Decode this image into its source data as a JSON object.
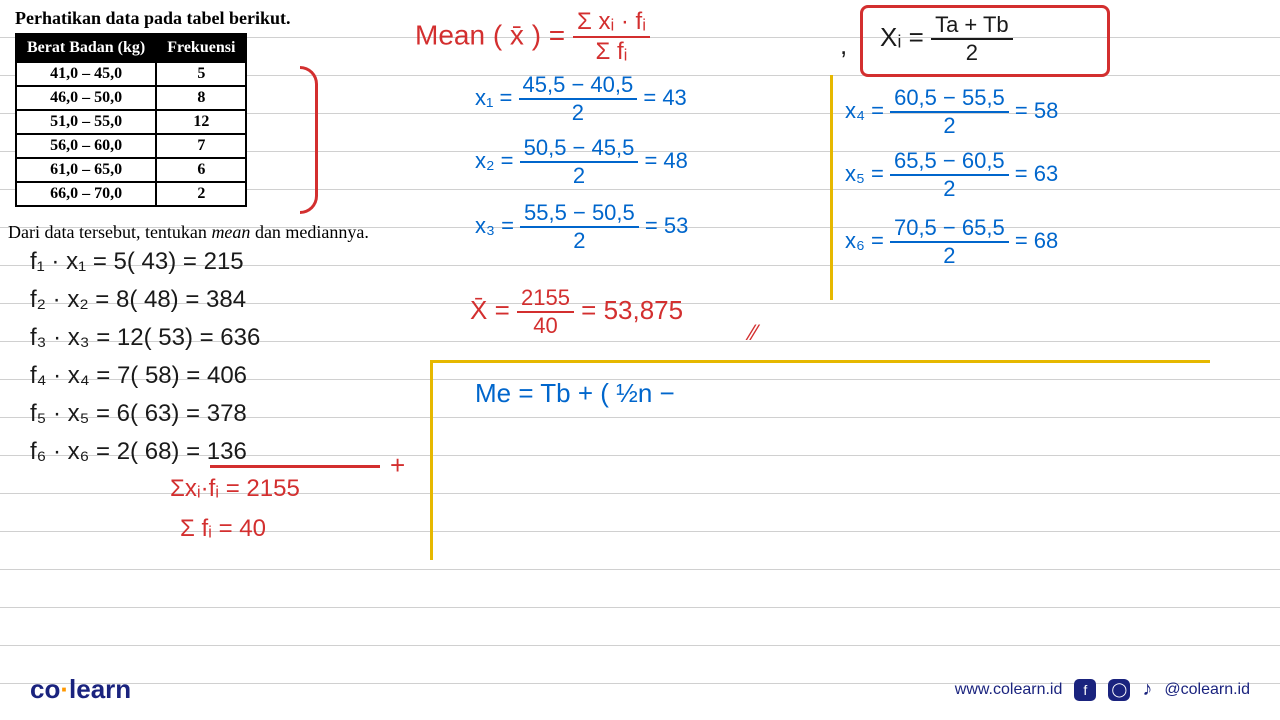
{
  "colors": {
    "red": "#d32f2f",
    "blue": "#0066cc",
    "black": "#1a1a1a",
    "yellow": "#e6b800",
    "table_header_bg": "#000000",
    "table_header_fg": "#ffffff",
    "ruled_line": "#d0d0d0",
    "brand_navy": "#1a237e",
    "brand_orange": "#ff9800"
  },
  "printed": {
    "title": "Perhatikan data pada tabel berikut.",
    "question_pre": "Dari data tersebut, tentukan ",
    "question_em": "mean",
    "question_post": " dan mediannya.",
    "table": {
      "headers": [
        "Berat Badan (kg)",
        "Frekuensi"
      ],
      "rows": [
        [
          "41,0 – 45,0",
          "5"
        ],
        [
          "46,0 – 50,0",
          "8"
        ],
        [
          "51,0 – 55,0",
          "12"
        ],
        [
          "56,0 – 60,0",
          "7"
        ],
        [
          "61,0 – 65,0",
          "6"
        ],
        [
          "66,0 – 70,0",
          "2"
        ]
      ]
    }
  },
  "hand": {
    "mean_label": "Mean ( x̄ ) =",
    "mean_num": "Σ xᵢ · fᵢ",
    "mean_den": "Σ fᵢ",
    "comma": ",",
    "xi_formula": "Xᵢ =",
    "xi_num": "Ta + Tb",
    "xi_den": "2",
    "x1": "x₁ =",
    "x1_num": "45,5 − 40,5",
    "x1_den": "2",
    "x1_eq": "= 43",
    "x2": "x₂ =",
    "x2_num": "50,5 − 45,5",
    "x2_den": "2",
    "x2_eq": "= 48",
    "x3": "x₃ =",
    "x3_num": "55,5 − 50,5",
    "x3_den": "2",
    "x3_eq": "= 53",
    "x4": "x₄ =",
    "x4_num": "60,5 − 55,5",
    "x4_den": "2",
    "x4_eq": "= 58",
    "x5": "x₅ =",
    "x5_num": "65,5 − 60,5",
    "x5_den": "2",
    "x5_eq": "= 63",
    "x6": "x₆ =",
    "x6_num": "70,5 − 65,5",
    "x6_den": "2",
    "x6_eq": "= 68",
    "f1": "f₁ · x₁ =  5( 43) = 215",
    "f2": "f₂ · x₂ =  8( 48) = 384",
    "f3": "f₃ · x₃ = 12( 53) = 636",
    "f4": "f₄ · x₄ =  7( 58) = 406",
    "f5": "f₅ · x₅ =  6( 63) = 378",
    "f6": "f₆ · x₆ =  2( 68) = 136",
    "plus": "+",
    "sum_xf": "Σxᵢ·fᵢ = 2155",
    "sum_f": "Σ fᵢ = 40",
    "xbar": "X̄  =",
    "xbar_num": "2155",
    "xbar_den": "40",
    "xbar_eq": "=   53,875",
    "dbl_slash": "⁄⁄",
    "median": "Me = Tb + ( ½n −"
  },
  "footer": {
    "brand_co": "co",
    "brand_learn": "learn",
    "url": "www.colearn.id",
    "handle": "@colearn.id"
  }
}
